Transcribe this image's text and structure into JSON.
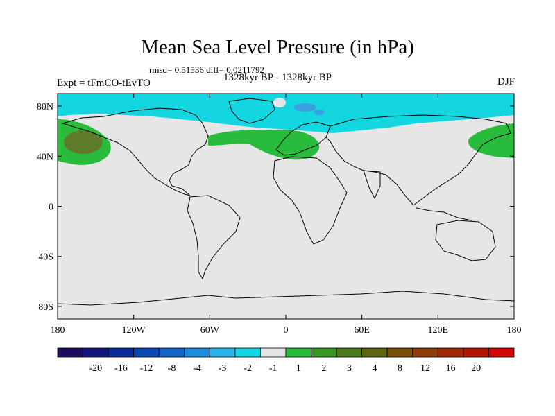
{
  "title": "Mean Sea Level Pressure (in hPa)",
  "stats": "rmsd= 0.51536 diff= 0.0211792",
  "subtitle": "1328kyr BP - 1328kyr BP",
  "experiment": "Expt = tFmCO-tEvTO",
  "season": "DJF",
  "colors": {
    "land_bg": "#e6e6e6",
    "cyan_neg": "#14d6e0",
    "blue_neg": "#3c9fe0",
    "green_pos": "#28bb3c",
    "olive_pos": "#5f7a2a"
  },
  "map": {
    "lat_labels": [
      "80N",
      "40N",
      "0",
      "40S",
      "80S"
    ],
    "lon_labels": [
      "180",
      "120W",
      "60W",
      "0",
      "60E",
      "120E",
      "180"
    ]
  },
  "colorbar": {
    "colors": [
      "#1e0a5a",
      "#14147e",
      "#0a2896",
      "#0a46b4",
      "#1464c8",
      "#1e8cdc",
      "#28b4e6",
      "#14d6e0",
      "#e6e6e6",
      "#28bb3c",
      "#3c9628",
      "#4b7a1e",
      "#5f6414",
      "#78500a",
      "#8c3c0a",
      "#a02808",
      "#b41406",
      "#d20808"
    ],
    "labels": [
      "-20",
      "-16",
      "-12",
      "-8",
      "-4",
      "-3",
      "-2",
      "-1",
      "1",
      "2",
      "3",
      "4",
      "8",
      "12",
      "16",
      "20"
    ]
  }
}
